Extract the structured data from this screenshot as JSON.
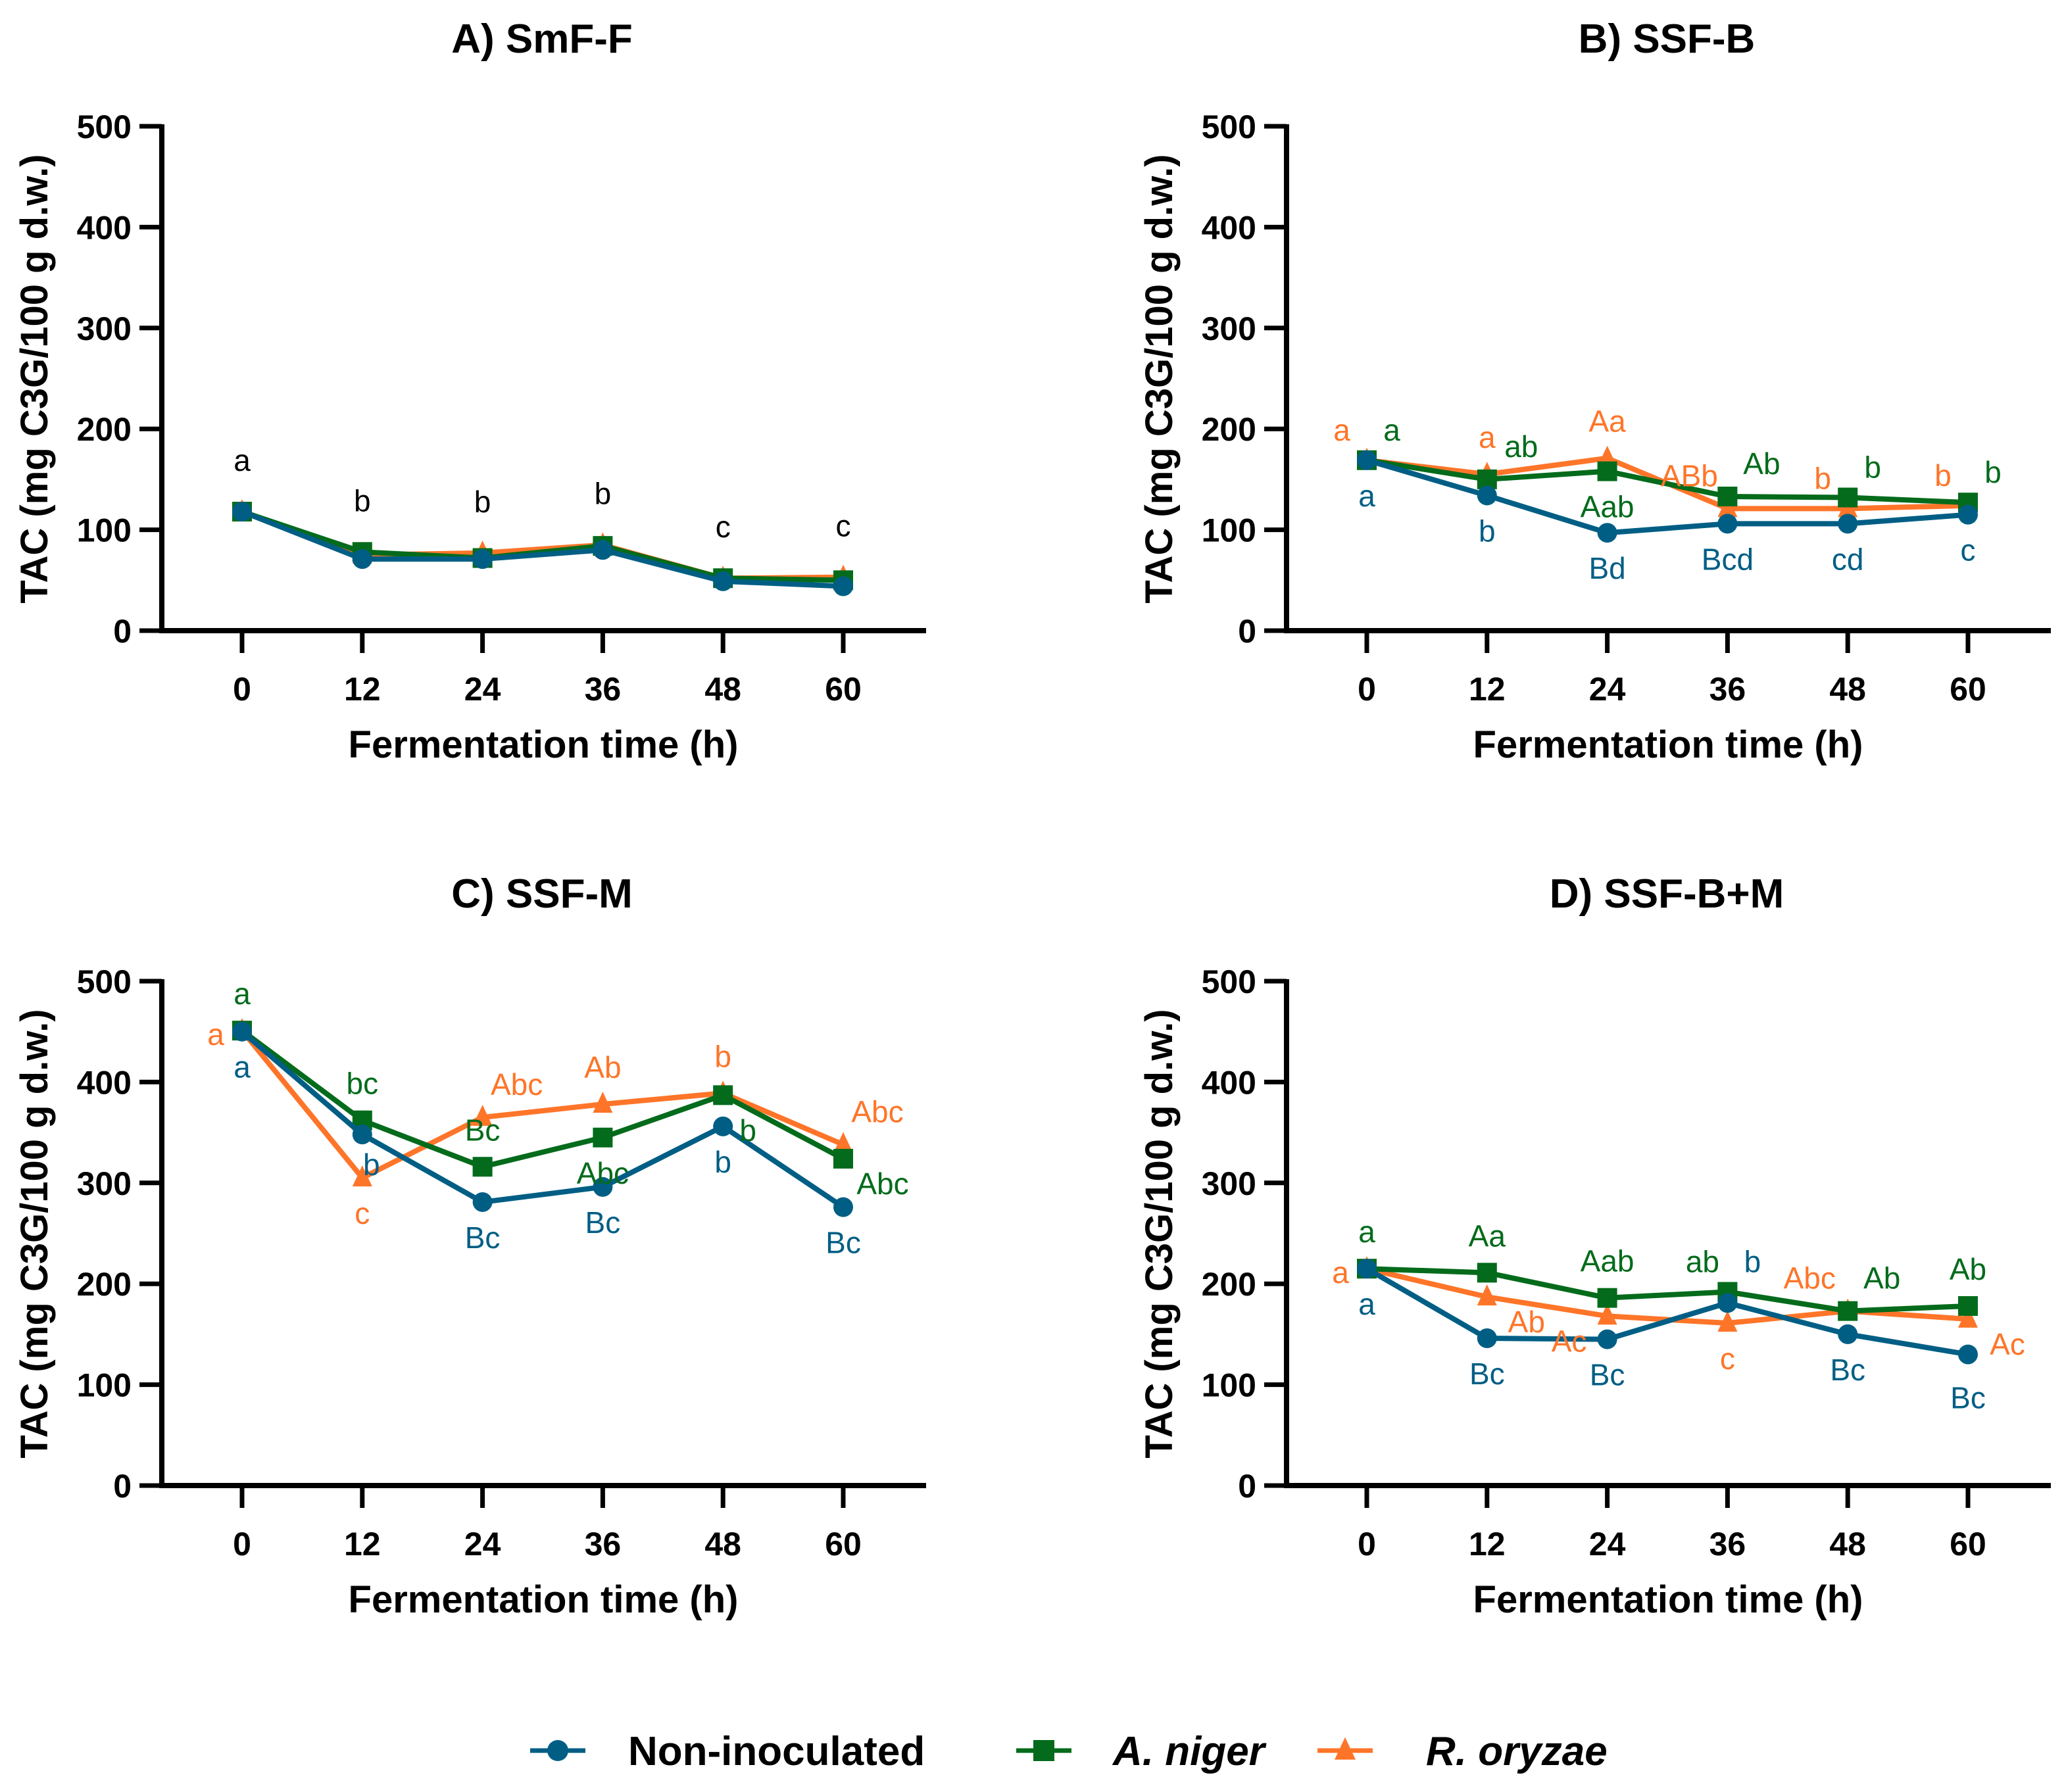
{
  "figure": {
    "legend": [
      {
        "series": "non",
        "label": "Non-inoculated",
        "marker": "circle",
        "italic": false
      },
      {
        "series": "niger",
        "label": "A. niger",
        "marker": "square",
        "italic": true
      },
      {
        "series": "oryzae",
        "label": "R. oryzae",
        "marker": "triangle",
        "italic": true
      }
    ],
    "series_colors": {
      "non": "#005e85",
      "niger": "#036b1b",
      "oryzae": "#fe7529"
    },
    "legend_placement": "bottom-center"
  },
  "chart_data": [
    {
      "type": "line",
      "title": "A) SmF-F",
      "xlabel": "Fermentation time (h)",
      "ylabel": "TAC (mg C3G/100 g d.w.)",
      "x": [
        0,
        12,
        24,
        36,
        48,
        60
      ],
      "xticks": [
        "0",
        "12",
        "24",
        "36",
        "48",
        "60"
      ],
      "yticks": [
        "0",
        "100",
        "200",
        "300",
        "400",
        "500"
      ],
      "ylim": [
        0,
        500
      ],
      "grid": false,
      "series": [
        {
          "key": "oryzae",
          "name": "R. oryzae",
          "values": [
            118,
            75,
            77,
            85,
            52,
            53
          ]
        },
        {
          "key": "niger",
          "name": "A. niger",
          "values": [
            118,
            78,
            72,
            84,
            52,
            50
          ]
        },
        {
          "key": "non",
          "name": "Non-inoculated",
          "values": [
            118,
            71,
            71,
            80,
            49,
            44
          ]
        }
      ],
      "annotations": [
        {
          "text": "a",
          "series": "black",
          "anchor": "niger",
          "i": 0,
          "pos": "above-far"
        },
        {
          "text": "b",
          "series": "black",
          "anchor": "niger",
          "i": 1,
          "pos": "above-far"
        },
        {
          "text": "b",
          "series": "black",
          "anchor": "oryzae",
          "i": 2,
          "pos": "above-far"
        },
        {
          "text": "b",
          "series": "black",
          "anchor": "oryzae",
          "i": 3,
          "pos": "above-far"
        },
        {
          "text": "c",
          "series": "black",
          "anchor": "oryzae",
          "i": 4,
          "pos": "above-far"
        },
        {
          "text": "c",
          "series": "black",
          "anchor": "oryzae",
          "i": 5,
          "pos": "above-far"
        }
      ]
    },
    {
      "type": "line",
      "title": "B) SSF-B",
      "xlabel": "Fermentation time (h)",
      "ylabel": "TAC (mg C3G/100 g d.w.)",
      "x": [
        0,
        12,
        24,
        36,
        48,
        60
      ],
      "xticks": [
        "0",
        "12",
        "24",
        "36",
        "48",
        "60"
      ],
      "yticks": [
        "0",
        "100",
        "200",
        "300",
        "400",
        "500"
      ],
      "ylim": [
        0,
        500
      ],
      "grid": false,
      "series": [
        {
          "key": "oryzae",
          "name": "R. oryzae",
          "values": [
            169,
            155,
            171,
            121,
            121,
            124
          ]
        },
        {
          "key": "niger",
          "name": "A. niger",
          "values": [
            169,
            150,
            158,
            133,
            132,
            127
          ]
        },
        {
          "key": "non",
          "name": "Non-inoculated",
          "values": [
            169,
            134,
            97,
            106,
            106,
            115
          ]
        }
      ],
      "annotations": [
        {
          "text": "a",
          "series": "oryzae",
          "anchor": "oryzae",
          "i": 0,
          "pos": "above-left"
        },
        {
          "text": "a",
          "series": "niger",
          "anchor": "niger",
          "i": 0,
          "pos": "above-right"
        },
        {
          "text": "a",
          "series": "non",
          "anchor": "non",
          "i": 0,
          "pos": "below"
        },
        {
          "text": "a",
          "series": "oryzae",
          "anchor": "oryzae",
          "i": 1,
          "pos": "above"
        },
        {
          "text": "ab",
          "series": "niger",
          "anchor": "niger",
          "i": 1,
          "pos": "above-right-wide"
        },
        {
          "text": "b",
          "series": "non",
          "anchor": "non",
          "i": 1,
          "pos": "below"
        },
        {
          "text": "Aa",
          "series": "oryzae",
          "anchor": "oryzae",
          "i": 2,
          "pos": "above"
        },
        {
          "text": "Aab",
          "series": "niger",
          "anchor": "niger",
          "i": 2,
          "pos": "below"
        },
        {
          "text": "Bd",
          "series": "non",
          "anchor": "non",
          "i": 2,
          "pos": "below"
        },
        {
          "text": "ABb",
          "series": "oryzae",
          "anchor": "oryzae",
          "i": 3,
          "pos": "above-left-wide"
        },
        {
          "text": "Ab",
          "series": "niger",
          "anchor": "niger",
          "i": 3,
          "pos": "above-right-wide"
        },
        {
          "text": "Bcd",
          "series": "non",
          "anchor": "non",
          "i": 3,
          "pos": "below"
        },
        {
          "text": "b",
          "series": "oryzae",
          "anchor": "oryzae",
          "i": 4,
          "pos": "above-left"
        },
        {
          "text": "b",
          "series": "niger",
          "anchor": "niger",
          "i": 4,
          "pos": "above-right"
        },
        {
          "text": "cd",
          "series": "non",
          "anchor": "non",
          "i": 4,
          "pos": "below"
        },
        {
          "text": "b",
          "series": "oryzae",
          "anchor": "oryzae",
          "i": 5,
          "pos": "above-left"
        },
        {
          "text": "b",
          "series": "niger",
          "anchor": "niger",
          "i": 5,
          "pos": "above-right"
        },
        {
          "text": "c",
          "series": "non",
          "anchor": "non",
          "i": 5,
          "pos": "below"
        }
      ]
    },
    {
      "type": "line",
      "title": "C) SSF-M",
      "xlabel": "Fermentation time (h)",
      "ylabel": "TAC (mg C3G/100 g d.w.)",
      "x": [
        0,
        12,
        24,
        36,
        48,
        60
      ],
      "xticks": [
        "0",
        "12",
        "24",
        "36",
        "48",
        "60"
      ],
      "yticks": [
        "0",
        "100",
        "200",
        "300",
        "400",
        "500"
      ],
      "ylim": [
        0,
        500
      ],
      "grid": false,
      "series": [
        {
          "key": "oryzae",
          "name": "R. oryzae",
          "values": [
            451,
            305,
            365,
            378,
            389,
            338
          ]
        },
        {
          "key": "niger",
          "name": "A. niger",
          "values": [
            451,
            362,
            316,
            345,
            387,
            324
          ]
        },
        {
          "key": "non",
          "name": "Non-inoculated",
          "values": [
            450,
            348,
            281,
            296,
            356,
            276
          ]
        }
      ],
      "annotations": [
        {
          "text": "a",
          "series": "niger",
          "anchor": "niger",
          "i": 0,
          "pos": "above"
        },
        {
          "text": "a",
          "series": "oryzae",
          "anchor": "oryzae",
          "i": 0,
          "pos": "left"
        },
        {
          "text": "a",
          "series": "non",
          "anchor": "non",
          "i": 0,
          "pos": "below"
        },
        {
          "text": "bc",
          "series": "niger",
          "anchor": "niger",
          "i": 1,
          "pos": "above"
        },
        {
          "text": "b",
          "series": "non",
          "anchor": "non",
          "i": 1,
          "pos": "below-right"
        },
        {
          "text": "c",
          "series": "oryzae",
          "anchor": "oryzae",
          "i": 1,
          "pos": "below"
        },
        {
          "text": "Abc",
          "series": "oryzae",
          "anchor": "oryzae",
          "i": 2,
          "pos": "above-right-wide"
        },
        {
          "text": "Bc",
          "series": "niger",
          "anchor": "niger",
          "i": 2,
          "pos": "above"
        },
        {
          "text": "Bc",
          "series": "non",
          "anchor": "non",
          "i": 2,
          "pos": "below"
        },
        {
          "text": "Ab",
          "series": "oryzae",
          "anchor": "oryzae",
          "i": 3,
          "pos": "above"
        },
        {
          "text": "Abc",
          "series": "niger",
          "anchor": "niger",
          "i": 3,
          "pos": "below"
        },
        {
          "text": "Bc",
          "series": "non",
          "anchor": "non",
          "i": 3,
          "pos": "below"
        },
        {
          "text": "b",
          "series": "oryzae",
          "anchor": "oryzae",
          "i": 4,
          "pos": "above"
        },
        {
          "text": "b",
          "series": "niger",
          "anchor": "non",
          "i": 4,
          "pos": "right"
        },
        {
          "text": "b",
          "series": "non",
          "anchor": "non",
          "i": 4,
          "pos": "below"
        },
        {
          "text": "Abc",
          "series": "oryzae",
          "anchor": "oryzae",
          "i": 5,
          "pos": "above-right-wide"
        },
        {
          "text": "Abc",
          "series": "niger",
          "anchor": "niger",
          "i": 5,
          "pos": "below-right-wide"
        },
        {
          "text": "Bc",
          "series": "non",
          "anchor": "non",
          "i": 5,
          "pos": "below"
        }
      ]
    },
    {
      "type": "line",
      "title": "D) SSF-B+M",
      "xlabel": "Fermentation time (h)",
      "ylabel": "TAC (mg C3G/100 g d.w.)",
      "x": [
        0,
        12,
        24,
        36,
        48,
        60
      ],
      "xticks": [
        "0",
        "12",
        "24",
        "36",
        "48",
        "60"
      ],
      "yticks": [
        "0",
        "100",
        "200",
        "300",
        "400",
        "500"
      ],
      "ylim": [
        0,
        500
      ],
      "grid": false,
      "series": [
        {
          "key": "oryzae",
          "name": "R. oryzae",
          "values": [
            215,
            187,
            168,
            161,
            173,
            165
          ]
        },
        {
          "key": "niger",
          "name": "A. niger",
          "values": [
            215,
            211,
            186,
            192,
            173,
            178
          ]
        },
        {
          "key": "non",
          "name": "Non-inoculated",
          "values": [
            215,
            146,
            145,
            181,
            150,
            130
          ]
        }
      ],
      "annotations": [
        {
          "text": "a",
          "series": "niger",
          "anchor": "niger",
          "i": 0,
          "pos": "above"
        },
        {
          "text": "a",
          "series": "oryzae",
          "anchor": "oryzae",
          "i": 0,
          "pos": "left"
        },
        {
          "text": "a",
          "series": "non",
          "anchor": "non",
          "i": 0,
          "pos": "below"
        },
        {
          "text": "Aa",
          "series": "niger",
          "anchor": "niger",
          "i": 1,
          "pos": "above"
        },
        {
          "text": "Ab",
          "series": "oryzae",
          "anchor": "oryzae",
          "i": 1,
          "pos": "below-right-wide"
        },
        {
          "text": "Bc",
          "series": "non",
          "anchor": "non",
          "i": 1,
          "pos": "below"
        },
        {
          "text": "Aab",
          "series": "niger",
          "anchor": "niger",
          "i": 2,
          "pos": "above"
        },
        {
          "text": "Ac",
          "series": "oryzae",
          "anchor": "oryzae",
          "i": 2,
          "pos": "below-left-wide"
        },
        {
          "text": "Bc",
          "series": "non",
          "anchor": "non",
          "i": 2,
          "pos": "below"
        },
        {
          "text": "ab",
          "series": "niger",
          "anchor": "niger",
          "i": 3,
          "pos": "above-left"
        },
        {
          "text": "b",
          "series": "non",
          "anchor": "niger",
          "i": 3,
          "pos": "above-right"
        },
        {
          "text": "c",
          "series": "oryzae",
          "anchor": "oryzae",
          "i": 3,
          "pos": "below"
        },
        {
          "text": "Abc",
          "series": "oryzae",
          "anchor": "niger",
          "i": 4,
          "pos": "above-left-wide"
        },
        {
          "text": "Ab",
          "series": "niger",
          "anchor": "niger",
          "i": 4,
          "pos": "above-right-wide"
        },
        {
          "text": "Bc",
          "series": "non",
          "anchor": "non",
          "i": 4,
          "pos": "below"
        },
        {
          "text": "Ab",
          "series": "niger",
          "anchor": "niger",
          "i": 5,
          "pos": "above"
        },
        {
          "text": "Ac",
          "series": "oryzae",
          "anchor": "oryzae",
          "i": 5,
          "pos": "below-right-wide"
        },
        {
          "text": "Bc",
          "series": "non",
          "anchor": "non",
          "i": 5,
          "pos": "below-far"
        }
      ]
    }
  ]
}
